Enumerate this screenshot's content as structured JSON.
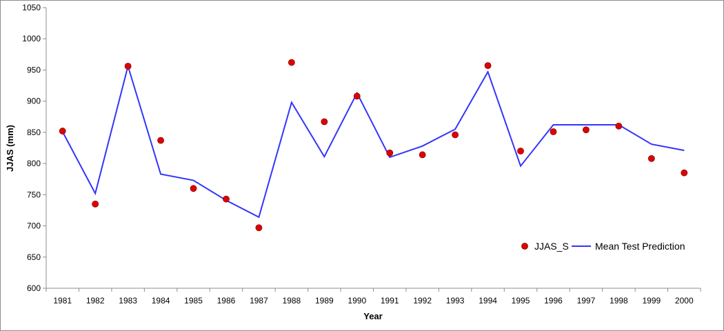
{
  "chart_data": {
    "type": "line",
    "title": "",
    "xlabel": "Year",
    "ylabel": "JJAS (mm)",
    "ylim": [
      600,
      1050
    ],
    "yticks": [
      600,
      650,
      700,
      750,
      800,
      850,
      900,
      950,
      1000,
      1050
    ],
    "categories": [
      "1981",
      "1982",
      "1983",
      "1984",
      "1985",
      "1986",
      "1987",
      "1988",
      "1989",
      "1990",
      "1991",
      "1992",
      "1993",
      "1994",
      "1995",
      "1996",
      "1997",
      "1998",
      "1999",
      "2000"
    ],
    "series": [
      {
        "name": "JJAS_S",
        "kind": "scatter",
        "color": "#e00000",
        "values": [
          852,
          735,
          956,
          837,
          760,
          743,
          697,
          962,
          867,
          908,
          817,
          814,
          846,
          957,
          820,
          851,
          854,
          860,
          808,
          785
        ]
      },
      {
        "name": "Mean Test Prediction",
        "kind": "line",
        "color": "#3333ff",
        "values": [
          851,
          752,
          956,
          783,
          773,
          741,
          714,
          898,
          811,
          913,
          810,
          828,
          855,
          947,
          796,
          862,
          862,
          862,
          831,
          821
        ]
      }
    ],
    "grid": false,
    "legend_position": "bottom-right"
  }
}
